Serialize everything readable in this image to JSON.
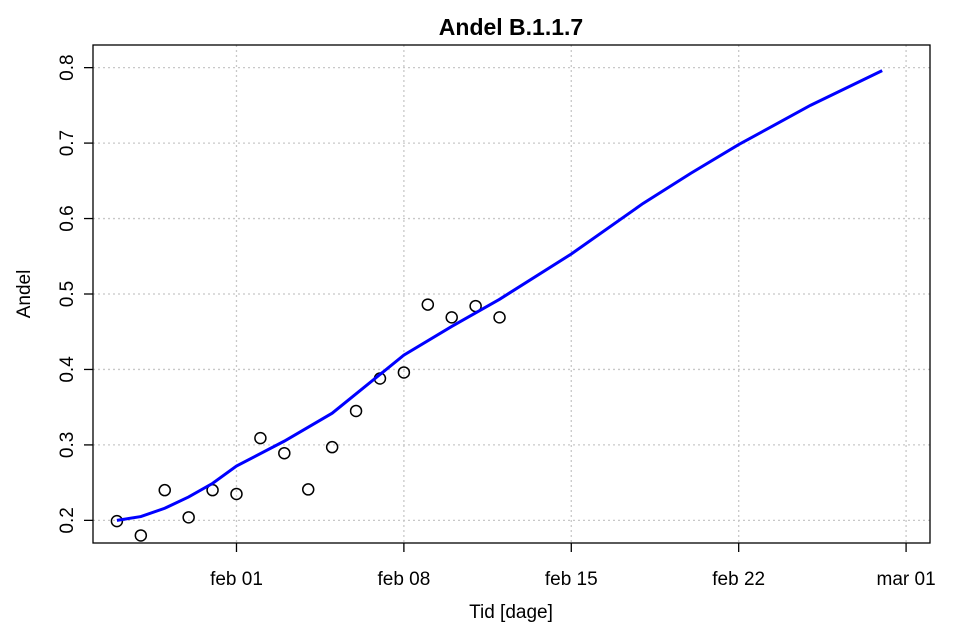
{
  "chart_data": {
    "type": "scatter",
    "title": "Andel B.1.1.7",
    "xlabel": "Tid [dage]",
    "ylabel": "Andel",
    "xlim": [
      "jan 26",
      "mar 02"
    ],
    "xticks": [
      "feb 01",
      "feb 08",
      "feb 15",
      "feb 22",
      "mar 01"
    ],
    "ylim": [
      0.17,
      0.83
    ],
    "yticks": [
      0.2,
      0.3,
      0.4,
      0.5,
      0.6,
      0.7,
      0.8
    ],
    "grid": true,
    "series": [
      {
        "style": "points",
        "color": "#000000",
        "x": [
          "jan 27",
          "jan 28",
          "jan 29",
          "jan 30",
          "jan 31",
          "feb 01",
          "feb 02",
          "feb 03",
          "feb 04",
          "feb 05",
          "feb 06",
          "feb 07",
          "feb 08",
          "feb 09",
          "feb 10",
          "feb 11",
          "feb 12"
        ],
        "values": [
          0.199,
          0.18,
          0.24,
          0.204,
          0.24,
          0.235,
          0.309,
          0.289,
          0.241,
          0.297,
          0.345,
          0.388,
          0.396,
          0.486,
          0.469,
          0.484,
          0.469
        ]
      },
      {
        "style": "line",
        "color": "#0000ff",
        "x": [
          "jan 27",
          "jan 28",
          "jan 29",
          "jan 30",
          "jan 31",
          "feb 01",
          "feb 03",
          "feb 05",
          "feb 08",
          "feb 10",
          "feb 12",
          "feb 15",
          "feb 18",
          "feb 20",
          "feb 22",
          "feb 25",
          "feb 28"
        ],
        "values": [
          0.2,
          0.205,
          0.216,
          0.231,
          0.249,
          0.272,
          0.305,
          0.342,
          0.419,
          0.457,
          0.493,
          0.553,
          0.62,
          0.66,
          0.698,
          0.75,
          0.796
        ]
      }
    ]
  }
}
